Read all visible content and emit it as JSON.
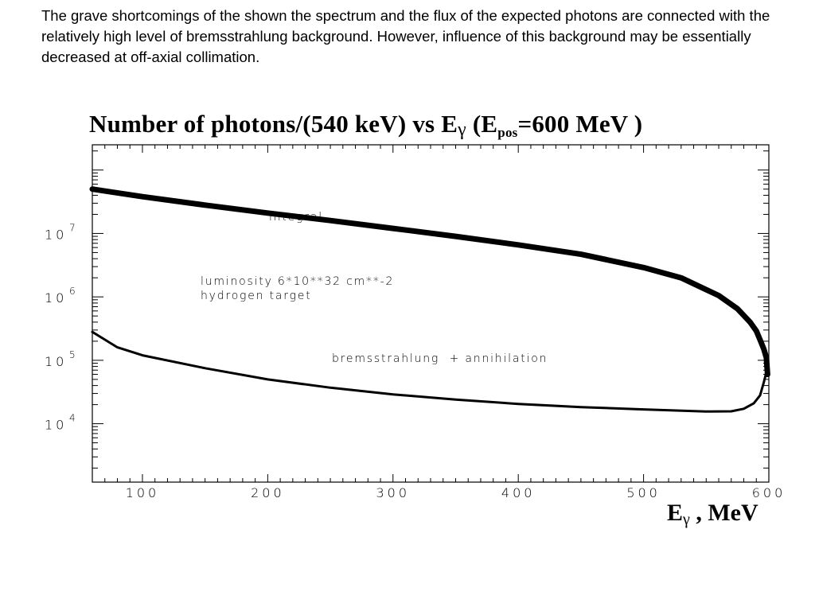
{
  "text": {
    "paragraph": "The grave shortcomings of the shown the spectrum and the flux of the expected photons are connected with the relatively high level of bremsstrahlung background. However, influence of this background may be essentially decreased at off-axial collimation."
  },
  "chart_data": {
    "type": "line",
    "title_main": "Number of photons/(540 keV) vs E",
    "title_gamma": "γ",
    "title_open": " (E",
    "title_pos": "pos",
    "title_close": "=600 MeV )",
    "xlabel_main": "E",
    "xlabel_gamma": "γ",
    "xlabel_unit": " , MeV",
    "x_scale": "linear",
    "y_scale": "log",
    "xlim": [
      60,
      600
    ],
    "ylim": [
      1200,
      250000000
    ],
    "x_ticks": [
      "100",
      "200",
      "300",
      "400",
      "500",
      "600"
    ],
    "y_ticks": [
      {
        "value": 10000,
        "base": "10",
        "exp": "4"
      },
      {
        "value": 100000,
        "base": "10",
        "exp": "5"
      },
      {
        "value": 1000000,
        "base": "10",
        "exp": "6"
      },
      {
        "value": 10000000,
        "base": "10",
        "exp": "7"
      }
    ],
    "annotations": {
      "integral": "integral",
      "luminosity": "luminosity 6*10**32 cm**-2",
      "target": "hydrogen target",
      "brems": "bremsstrahlung  + annihilation"
    },
    "series": [
      {
        "name": "integral",
        "x": [
          60,
          100,
          150,
          200,
          250,
          300,
          350,
          400,
          450,
          500,
          530,
          560,
          575,
          585,
          590,
          593,
          596,
          598,
          599
        ],
        "y": [
          50000000,
          38000000,
          28000000,
          21000000,
          16000000,
          12000000,
          9000000,
          6600000,
          4700000,
          2900000,
          2000000,
          1050000,
          650000,
          400000,
          290000,
          210000,
          150000,
          110000,
          60000
        ]
      },
      {
        "name": "bremsstrahlung + annihilation",
        "x": [
          60,
          80,
          100,
          150,
          200,
          250,
          300,
          350,
          400,
          450,
          500,
          550,
          570,
          580,
          588,
          593,
          596,
          598,
          599
        ],
        "y": [
          280000,
          160000,
          120000,
          75000,
          50000,
          37000,
          29000,
          24000,
          20500,
          18300,
          16800,
          15600,
          15700,
          17200,
          21000,
          28000,
          45000,
          65000,
          80000
        ]
      }
    ]
  }
}
